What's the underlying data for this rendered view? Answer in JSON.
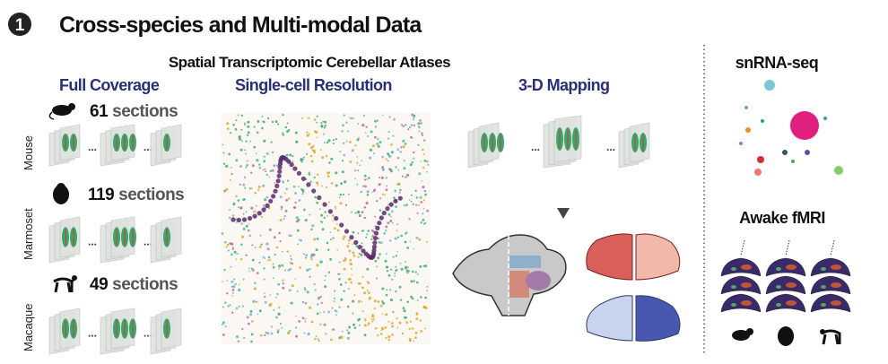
{
  "header": {
    "badge": "1",
    "title": "Cross-species and Multi-modal Data"
  },
  "atlas": {
    "heading": "Spatial Transcriptomic Cerebellar Atlases",
    "columns": [
      "Full Coverage",
      "Single-cell Resolution",
      "3-D Mapping"
    ]
  },
  "species": [
    {
      "name": "Mouse",
      "count": "61",
      "unit": "sections",
      "icon": "mouse-icon"
    },
    {
      "name": "Marmoset",
      "count": "119",
      "unit": "sections",
      "icon": "marmoset-icon"
    },
    {
      "name": "Macaque",
      "count": "49",
      "unit": "sections",
      "icon": "macaque-icon"
    }
  ],
  "ellipsis": "...",
  "right": {
    "snrna": "snRNA-seq",
    "fmri": "Awake fMRI"
  },
  "colors": {
    "heading_blue": "#2a2f7a",
    "section_green": "#3aa76d",
    "purkinje_purple": "#5b2a6e",
    "granule_orange": "#e0a21a"
  }
}
